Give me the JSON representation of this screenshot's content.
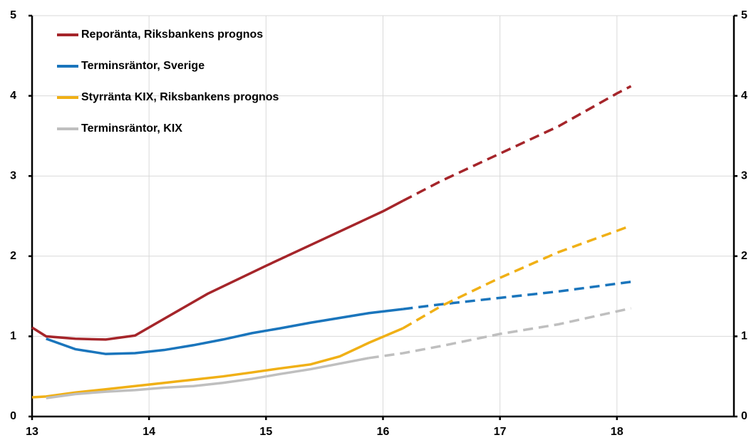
{
  "chart_data": {
    "type": "line",
    "xlim": [
      13,
      19
    ],
    "xticks": [
      13,
      14,
      15,
      16,
      17,
      18
    ],
    "ylim": [
      0,
      5
    ],
    "yticks": [
      0,
      1,
      2,
      3,
      4,
      5
    ],
    "y2lim": [
      0,
      5
    ],
    "y2ticks": [
      0,
      1,
      2,
      3,
      4,
      5
    ],
    "grid": true,
    "legend": "upper left",
    "series": [
      {
        "name": "Reporänta, Riksbankens prognos",
        "color": "#a5252a",
        "dash_from": 16.17,
        "x": [
          13.0,
          13.12,
          13.37,
          13.63,
          13.88,
          14.13,
          14.5,
          15.0,
          15.5,
          16.0,
          16.17,
          16.5,
          17.0,
          17.5,
          18.0,
          18.12
        ],
        "values": [
          1.11,
          1.0,
          0.97,
          0.96,
          1.01,
          1.22,
          1.53,
          1.88,
          2.22,
          2.56,
          2.69,
          2.94,
          3.28,
          3.62,
          4.03,
          4.12
        ]
      },
      {
        "name": "Terminsräntor, Sverige",
        "color": "#1a75bc",
        "dash_from": 16.17,
        "x": [
          13.12,
          13.37,
          13.63,
          13.88,
          14.13,
          14.38,
          14.63,
          14.88,
          15.12,
          15.38,
          15.63,
          15.88,
          16.17,
          16.5,
          17.0,
          17.5,
          18.12
        ],
        "values": [
          0.97,
          0.84,
          0.78,
          0.79,
          0.83,
          0.89,
          0.96,
          1.04,
          1.1,
          1.17,
          1.23,
          1.29,
          1.34,
          1.4,
          1.48,
          1.56,
          1.68
        ]
      },
      {
        "name": "Styrränta KIX, Riksbankens prognos",
        "color": "#f0b016",
        "dash_from": 16.17,
        "x": [
          13.0,
          13.12,
          13.37,
          13.63,
          13.88,
          14.13,
          14.38,
          14.63,
          14.88,
          15.12,
          15.38,
          15.63,
          15.88,
          16.17,
          16.5,
          17.0,
          17.5,
          18.12
        ],
        "values": [
          0.24,
          0.25,
          0.3,
          0.34,
          0.38,
          0.42,
          0.46,
          0.5,
          0.55,
          0.6,
          0.65,
          0.75,
          0.92,
          1.1,
          1.38,
          1.73,
          2.05,
          2.38
        ]
      },
      {
        "name": "Terminsräntor, KIX",
        "color": "#bfbfbf",
        "dash_from": 15.88,
        "x": [
          13.12,
          13.37,
          13.63,
          13.88,
          14.13,
          14.38,
          14.63,
          14.88,
          15.12,
          15.38,
          15.63,
          15.88,
          16.17,
          16.5,
          17.0,
          17.5,
          18.12
        ],
        "values": [
          0.23,
          0.28,
          0.31,
          0.33,
          0.36,
          0.38,
          0.42,
          0.47,
          0.53,
          0.59,
          0.66,
          0.73,
          0.79,
          0.88,
          1.03,
          1.15,
          1.35
        ]
      }
    ]
  }
}
